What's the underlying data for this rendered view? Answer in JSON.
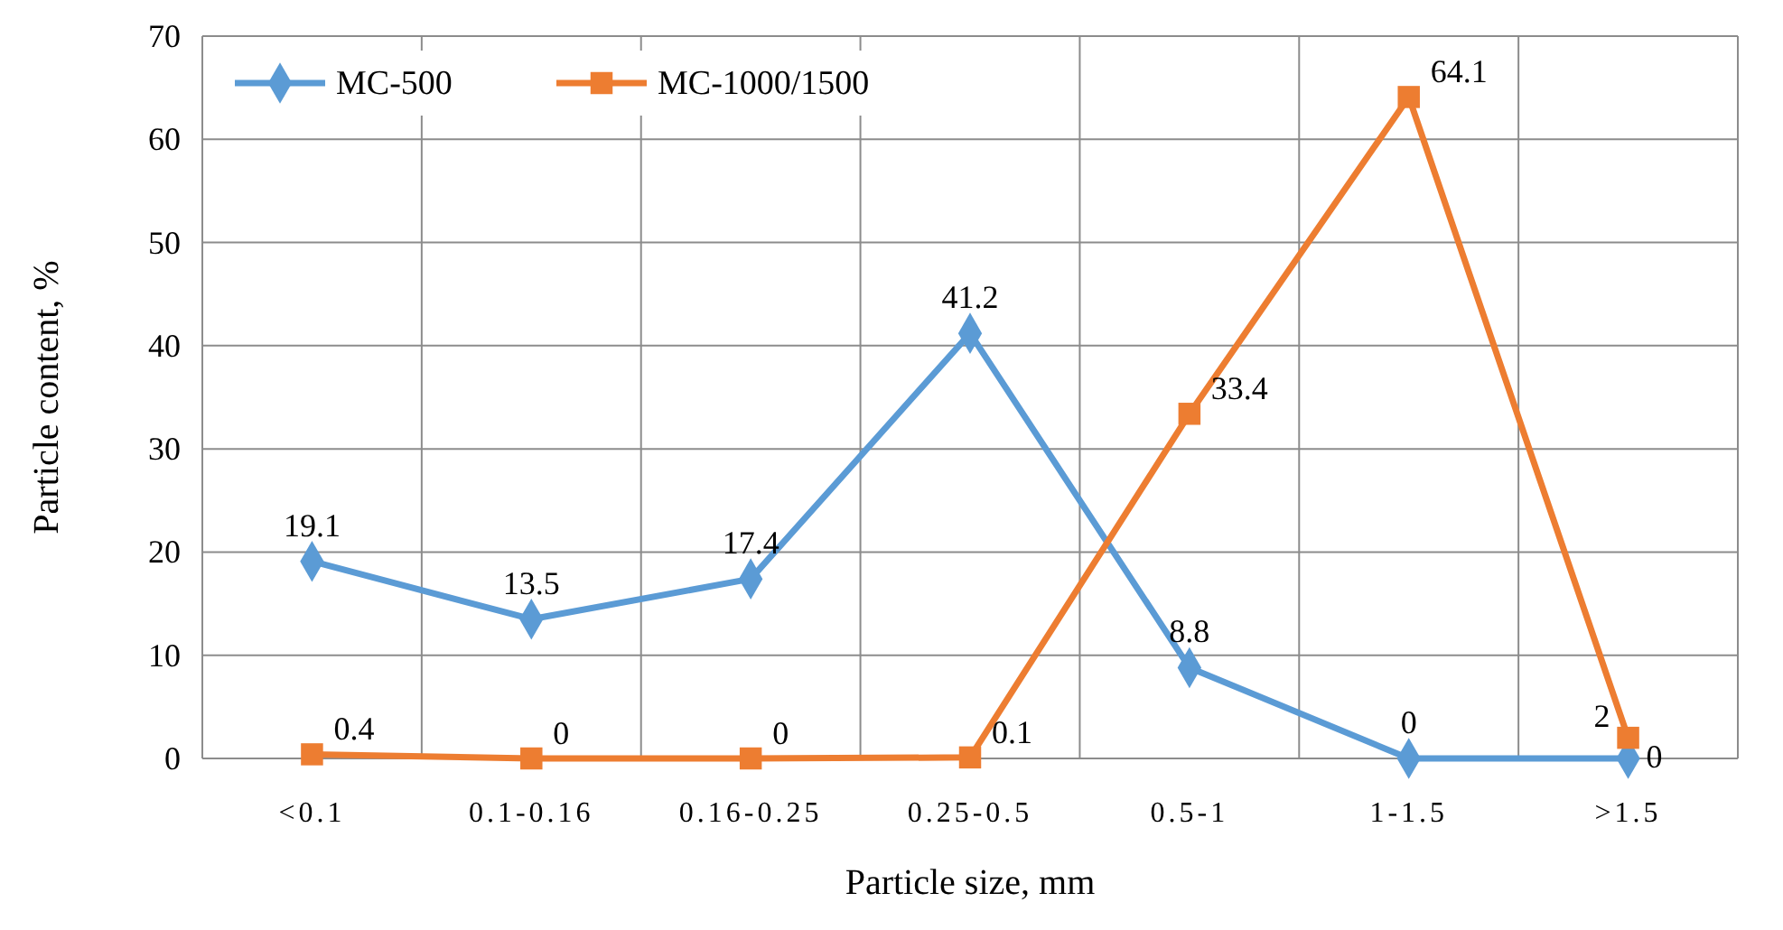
{
  "chart_data": {
    "type": "line",
    "xlabel": "Particle size, mm",
    "ylabel": "Particle content, %",
    "categories": [
      "<0.1",
      "0.1-0.16",
      "0.16-0.25",
      "0.25-0.5",
      "0.5-1",
      "1-1.5",
      ">1.5"
    ],
    "series": [
      {
        "name": "MC-500",
        "color": "#5b9bd5",
        "marker": "diamond",
        "values": [
          19.1,
          13.5,
          17.4,
          41.2,
          8.8,
          0,
          0
        ]
      },
      {
        "name": "MC-1000/1500",
        "color": "#ed7d31",
        "marker": "square",
        "values": [
          0.4,
          0,
          0,
          0.1,
          33.4,
          64.1,
          2
        ]
      }
    ],
    "ylim": [
      0,
      70
    ],
    "yticks": [
      0,
      10,
      20,
      30,
      40,
      50,
      60,
      70
    ],
    "grid": true,
    "legend": "top left",
    "data_labels": true,
    "line_style": "solid"
  }
}
